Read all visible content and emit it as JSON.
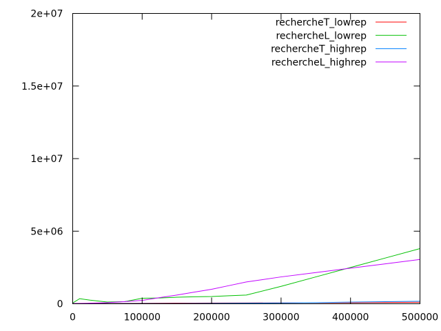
{
  "chart_data": {
    "type": "line",
    "title": "",
    "xlabel": "",
    "ylabel": "",
    "xlim": [
      0,
      500000
    ],
    "ylim": [
      0,
      20000000
    ],
    "x_ticks": [
      0,
      100000,
      200000,
      300000,
      400000,
      500000
    ],
    "x_tick_labels": [
      "0",
      "100000",
      "200000",
      "300000",
      "400000",
      "500000"
    ],
    "y_ticks": [
      0,
      5000000,
      10000000,
      15000000,
      20000000
    ],
    "y_tick_labels": [
      "0",
      "5e+06",
      "1e+07",
      "1.5e+07",
      "2e+07"
    ],
    "grid": false,
    "legend_position": "top-right",
    "series": [
      {
        "name": "rechercheT_lowrep",
        "color": "#ff0000",
        "x": [
          0,
          10000,
          25000,
          50000,
          75000,
          100000,
          125000,
          150000,
          175000,
          200000,
          250000,
          300000,
          350000,
          400000,
          450000,
          500000
        ],
        "y": [
          10000,
          15000,
          20000,
          25000,
          30000,
          35000,
          40000,
          45000,
          50000,
          55000,
          60000,
          65000,
          70000,
          80000,
          90000,
          100000
        ]
      },
      {
        "name": "rechercheL_lowrep",
        "color": "#00c000",
        "x": [
          0,
          10000,
          25000,
          50000,
          75000,
          100000,
          125000,
          150000,
          175000,
          200000,
          225000,
          250000,
          300000,
          350000,
          400000,
          450000,
          500000
        ],
        "y": [
          50000,
          350000,
          250000,
          120000,
          150000,
          380000,
          400000,
          450000,
          480000,
          500000,
          550000,
          600000,
          1200000,
          1850000,
          2500000,
          3150000,
          3800000
        ]
      },
      {
        "name": "rechercheT_highrep",
        "color": "#0080ff",
        "x": [
          0,
          50000,
          100000,
          150000,
          200000,
          250000,
          300000,
          350000,
          400000,
          450000,
          500000
        ],
        "y": [
          5000,
          10000,
          15000,
          20000,
          30000,
          40000,
          60000,
          80000,
          110000,
          140000,
          170000
        ]
      },
      {
        "name": "rechercheL_highrep",
        "color": "#c000ff",
        "x": [
          0,
          25000,
          50000,
          75000,
          100000,
          125000,
          150000,
          175000,
          200000,
          225000,
          250000,
          300000,
          350000,
          400000,
          450000,
          500000
        ],
        "y": [
          20000,
          40000,
          80000,
          150000,
          230000,
          420000,
          600000,
          800000,
          1000000,
          1250000,
          1500000,
          1850000,
          2150000,
          2450000,
          2750000,
          3050000
        ]
      }
    ]
  }
}
